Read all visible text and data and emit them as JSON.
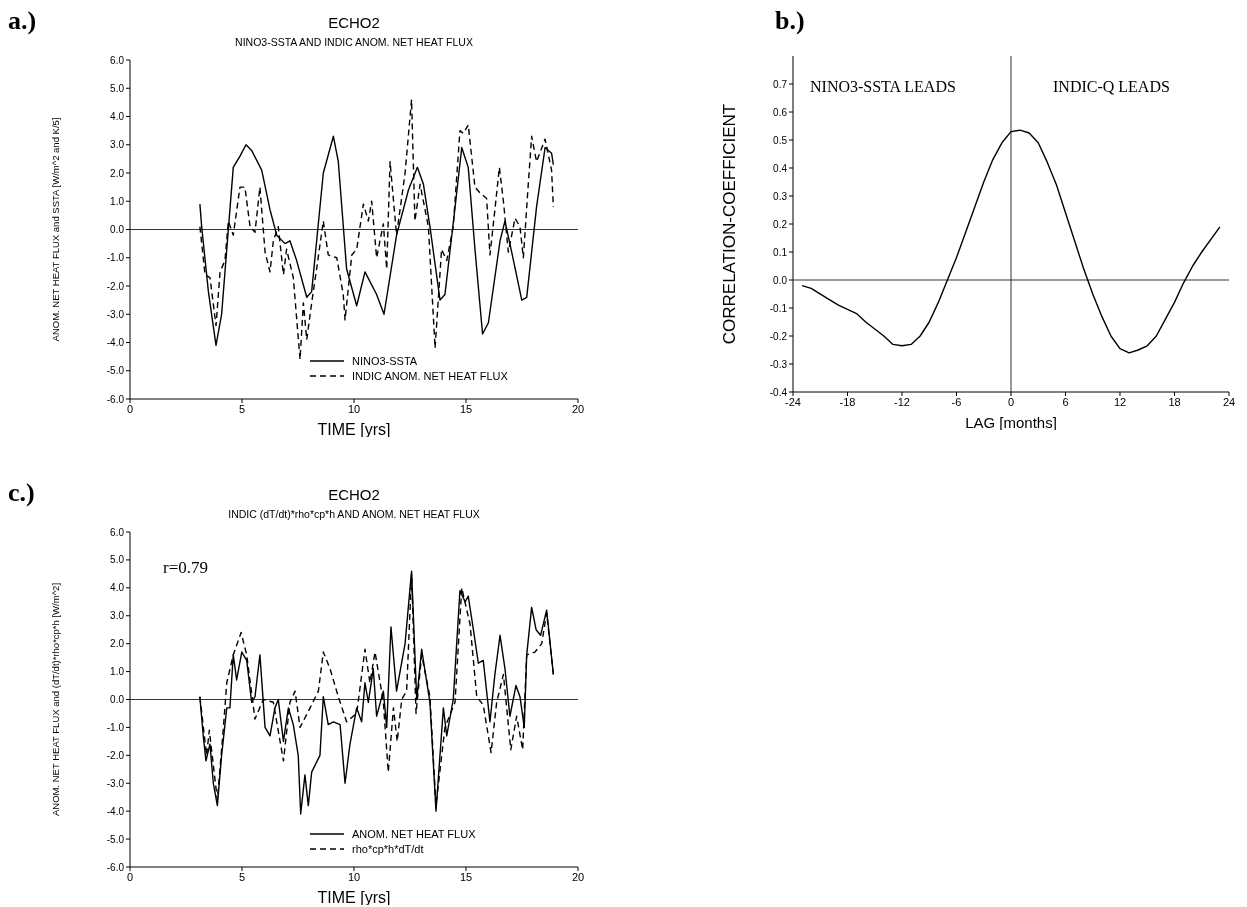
{
  "chart_data": [
    {
      "type": "line",
      "title": "ECHO2",
      "subtitle": "NINO3-SSTA AND INDIC ANOM. NET HEAT FLUX",
      "xlabel": "TIME [yrs]",
      "ylabel": "ANOM. NET HEAT FLUX and SSTA [W/m^2 and K/5]",
      "annotations": [
        "a.)"
      ],
      "xlim": [
        0,
        20
      ],
      "xticks": [
        0,
        5,
        10,
        15,
        20
      ],
      "ylim": [
        -6,
        6
      ],
      "yticks": [
        {
          "value": -6,
          "label": "-6.0"
        },
        {
          "value": -5,
          "label": "-5.0"
        },
        {
          "value": -4,
          "label": "-4.0"
        },
        {
          "value": -3,
          "label": "-3.0"
        },
        {
          "value": -2,
          "label": "-2.0"
        },
        {
          "value": -1,
          "label": "-1.0"
        },
        {
          "value": 0,
          "label": "0.0"
        },
        {
          "value": 1,
          "label": "1.0"
        },
        {
          "value": 2,
          "label": "2.0"
        },
        {
          "value": 3,
          "label": "3.0"
        },
        {
          "value": 4,
          "label": "4.0"
        },
        {
          "value": 5,
          "label": "5.0"
        },
        {
          "value": 6,
          "label": "6.0"
        }
      ],
      "grid": false,
      "legend": "bottom",
      "ref_lines": [
        {
          "axis": "y",
          "value": 0,
          "color": "#000000"
        }
      ],
      "series": [
        {
          "name": "NINO3-SSTA",
          "color": "#000000",
          "line_style": "solid",
          "x": [
            3.12,
            3.2,
            3.5,
            3.84,
            4.09,
            4.32,
            4.61,
            4.91,
            5.18,
            5.43,
            5.88,
            6.25,
            6.55,
            6.92,
            7.14,
            7.44,
            7.89,
            8.11,
            8.63,
            9.08,
            9.3,
            9.67,
            10.12,
            10.49,
            11.01,
            11.34,
            11.9,
            12.43,
            12.83,
            13.1,
            13.39,
            13.84,
            14.06,
            14.5,
            14.81,
            15.1,
            15.4,
            15.74,
            16,
            16.52,
            16.74,
            17.04,
            17.49,
            17.71,
            18.15,
            18.53,
            18.82,
            18.9
          ],
          "values": [
            0.9,
            0.1,
            -2.2,
            -4.1,
            -3,
            -0.7,
            2.2,
            2.6,
            3,
            2.8,
            2.1,
            0.7,
            -0.2,
            -0.5,
            -0.4,
            -1.1,
            -2.4,
            -2.2,
            2,
            3.3,
            2.4,
            -1.4,
            -2.7,
            -1.5,
            -2.3,
            -3,
            -0.2,
            1.4,
            2.2,
            1.6,
            0.1,
            -2.5,
            -2.3,
            0.7,
            2.9,
            2.2,
            -0.7,
            -3.7,
            -3.3,
            -0.4,
            0.3,
            -0.8,
            -2.5,
            -2.4,
            0.8,
            2.9,
            2.7,
            2.3
          ]
        },
        {
          "name": "INDIC ANOM. NET HEAT FLUX",
          "color": "#000000",
          "line_style": "dashed",
          "x": [
            3.12,
            3.35,
            3.57,
            3.84,
            4.02,
            4.24,
            4.39,
            4.61,
            4.91,
            5.13,
            5.36,
            5.58,
            5.8,
            6.03,
            6.25,
            6.4,
            6.62,
            6.85,
            6.99,
            7.29,
            7.59,
            7.74,
            7.89,
            8.11,
            8.33,
            8.63,
            8.85,
            9.23,
            9.52,
            9.6,
            9.9,
            10.12,
            10.42,
            10.64,
            10.79,
            11.01,
            11.31,
            11.46,
            11.61,
            11.9,
            12.28,
            12.57,
            12.72,
            12.95,
            13.32,
            13.62,
            13.91,
            14.14,
            14.43,
            14.73,
            14.88,
            15.1,
            15.4,
            15.62,
            15.92,
            16.07,
            16.29,
            16.49,
            16.67,
            16.89,
            17.19,
            17.41,
            17.56,
            17.78,
            17.93,
            18.15,
            18.53,
            18.82,
            18.9
          ],
          "values": [
            0.1,
            -1.6,
            -1.7,
            -3.4,
            -1.5,
            -1.1,
            0.3,
            -0.2,
            1.5,
            1.5,
            0.1,
            -0.1,
            1.5,
            -0.8,
            -1.5,
            -0.4,
            0.1,
            -1.6,
            -0.7,
            -1.7,
            -4.6,
            -2.6,
            -3.9,
            -2.6,
            -1.4,
            0.3,
            -0.9,
            -1,
            -2.3,
            -3.2,
            -0.9,
            -0.7,
            0.9,
            0.3,
            1,
            -1,
            0.2,
            -1.4,
            2.4,
            -0.2,
            2,
            4.6,
            0.3,
            1.6,
            0.1,
            -4.2,
            -0.7,
            -1.1,
            0.1,
            3.5,
            3.4,
            3.7,
            1.5,
            1.3,
            1.1,
            -0.9,
            0.7,
            2.2,
            1,
            -0.8,
            0.4,
            0.1,
            -1,
            1.6,
            3.3,
            2.4,
            3.2,
            2.1,
            0.8
          ]
        }
      ]
    },
    {
      "type": "line",
      "ylabel": "CORRELATION-COEFFICIENT",
      "xlabel": "LAG [months]",
      "annotations": [
        "b.)",
        "NINO3-SSTA LEADS",
        "INDIC-Q LEADS"
      ],
      "xlim": [
        -24,
        24
      ],
      "xticks": [
        -24,
        -18,
        -12,
        -6,
        0,
        6,
        12,
        18,
        24
      ],
      "ylim": [
        -0.4,
        0.8
      ],
      "yticks": [
        -0.4,
        -0.3,
        -0.2,
        -0.1,
        {
          "value": 0,
          "label": "0.0"
        },
        0.1,
        0.2,
        0.3,
        0.4,
        0.5,
        0.6,
        0.7
      ],
      "grid": false,
      "ref_lines": [
        {
          "axis": "y",
          "value": 0,
          "color": "#000000"
        },
        {
          "axis": "x",
          "value": 0,
          "color": "#000000"
        }
      ],
      "series": [
        {
          "color": "#000000",
          "line_style": "solid",
          "x": [
            -23,
            -22,
            -20,
            -19,
            -17,
            -16,
            -14,
            -13,
            -12,
            -11,
            -10,
            -9,
            -8,
            -7,
            -6,
            -5,
            -4,
            -3,
            -2,
            -1,
            0,
            1,
            2,
            3,
            4,
            5,
            6,
            7,
            8,
            9,
            10,
            11,
            12,
            13,
            14,
            15,
            16,
            17,
            18,
            19,
            20,
            21,
            23
          ],
          "values": [
            -0.02,
            -0.03,
            -0.07,
            -0.09,
            -0.12,
            -0.15,
            -0.2,
            -0.23,
            -0.235,
            -0.23,
            -0.2,
            -0.15,
            -0.08,
            0,
            0.08,
            0.17,
            0.26,
            0.35,
            0.43,
            0.49,
            0.53,
            0.535,
            0.525,
            0.49,
            0.42,
            0.34,
            0.24,
            0.14,
            0.04,
            -0.05,
            -0.13,
            -0.2,
            -0.245,
            -0.26,
            -0.25,
            -0.235,
            -0.2,
            -0.14,
            -0.08,
            -0.01,
            0.05,
            0.1,
            0.19
          ]
        }
      ]
    },
    {
      "type": "line",
      "title": "ECHO2",
      "subtitle": "INDIC (dT/dt)*rho*cp*h AND ANOM. NET HEAT FLUX",
      "xlabel": "TIME [yrs]",
      "ylabel": "ANOM. NET HEAT FLUX and (dT/dt)*rho*cp*h  [W/m^2]",
      "annotations": [
        "c.)",
        "r=0.79"
      ],
      "xlim": [
        0,
        20
      ],
      "xticks": [
        0,
        5,
        10,
        15,
        20
      ],
      "ylim": [
        -6,
        6
      ],
      "yticks": [
        {
          "value": -6,
          "label": "-6.0"
        },
        {
          "value": -5,
          "label": "-5.0"
        },
        {
          "value": -4,
          "label": "-4.0"
        },
        {
          "value": -3,
          "label": "-3.0"
        },
        {
          "value": -2,
          "label": "-2.0"
        },
        {
          "value": -1,
          "label": "-1.0"
        },
        {
          "value": 0,
          "label": "0.0"
        },
        {
          "value": 1,
          "label": "1.0"
        },
        {
          "value": 2,
          "label": "2.0"
        },
        {
          "value": 3,
          "label": "3.0"
        },
        {
          "value": 4,
          "label": "4.0"
        },
        {
          "value": 5,
          "label": "5.0"
        },
        {
          "value": 6,
          "label": "6.0"
        }
      ],
      "grid": false,
      "legend": "bottom",
      "ref_lines": [
        {
          "axis": "y",
          "value": 0,
          "color": "#000000"
        }
      ],
      "series": [
        {
          "name": "ANOM. NET HEAT FLUX",
          "color": "#000000",
          "line_style": "solid",
          "x": [
            3.12,
            3.27,
            3.39,
            3.57,
            3.72,
            3.9,
            4.09,
            4.32,
            4.46,
            4.61,
            4.76,
            4.99,
            5.21,
            5.43,
            5.58,
            5.8,
            6.03,
            6.25,
            6.47,
            6.62,
            6.85,
            7.07,
            7.29,
            7.51,
            7.62,
            7.81,
            7.96,
            8.11,
            8.48,
            8.63,
            8.85,
            9.08,
            9.38,
            9.6,
            9.82,
            10.12,
            10.34,
            10.49,
            10.64,
            10.86,
            11.01,
            11.31,
            11.46,
            11.65,
            11.9,
            12.28,
            12.57,
            12.8,
            13.02,
            13.39,
            13.66,
            13.99,
            14.14,
            14.43,
            14.73,
            14.96,
            15.1,
            15.33,
            15.55,
            15.77,
            16.07,
            16.29,
            16.52,
            16.74,
            16.96,
            17.23,
            17.41,
            17.6,
            17.71,
            17.93,
            18.13,
            18.33,
            18.6,
            18.9
          ],
          "values": [
            0.1,
            -1.3,
            -2.2,
            -1.6,
            -3,
            -3.8,
            -2,
            -0.3,
            -0.3,
            1.6,
            0.7,
            1.7,
            1.4,
            -0.1,
            0.1,
            1.6,
            -1,
            -1.3,
            -0.3,
            0,
            -1.5,
            -0.3,
            -0.9,
            -2,
            -4.1,
            -2.7,
            -3.8,
            -2.6,
            -2,
            0.1,
            -0.9,
            -0.8,
            -0.9,
            -3,
            -1.6,
            -0.3,
            -0.8,
            0.6,
            -0.1,
            1.1,
            -0.6,
            0.3,
            -1,
            2.6,
            0.3,
            2,
            4.6,
            0,
            1.8,
            -0.1,
            -4,
            -0.3,
            -1.3,
            0,
            3.9,
            3.5,
            3.7,
            2.5,
            1.3,
            1.4,
            -0.8,
            0.9,
            2.3,
            1.1,
            -0.6,
            0.5,
            0.1,
            -1,
            1.6,
            3.3,
            2.5,
            2.3,
            3.2,
            0.9
          ]
        },
        {
          "name": "rho*cp*h*dT/dt",
          "color": "#000000",
          "line_style": "dashed",
          "x": [
            3.12,
            3.42,
            3.54,
            3.9,
            4.17,
            4.32,
            4.61,
            4.96,
            5.21,
            5.58,
            5.95,
            6.4,
            6.85,
            7.14,
            7.37,
            7.59,
            8.04,
            8.41,
            8.63,
            8.93,
            9.3,
            9.67,
            10.12,
            10.49,
            10.71,
            10.94,
            11.31,
            11.53,
            11.76,
            11.93,
            12.13,
            12.35,
            12.57,
            12.77,
            13.02,
            13.39,
            13.66,
            14.06,
            14.51,
            14.81,
            15.18,
            15.48,
            15.77,
            16.12,
            16.37,
            16.67,
            17,
            17.26,
            17.53,
            17.71,
            18.08,
            18.38,
            18.6,
            18.9
          ],
          "values": [
            0.1,
            -2,
            -1.1,
            -3.6,
            -1,
            0.6,
            1.6,
            2.4,
            1.6,
            -0.7,
            0,
            -0.1,
            -2.2,
            -0.1,
            0.3,
            -1,
            -0.3,
            0.3,
            1.7,
            1.1,
            0.1,
            -0.8,
            -0.5,
            1.8,
            0.6,
            1.7,
            -0.1,
            -2.6,
            -0.3,
            -1.5,
            0,
            0.3,
            4.5,
            -0.5,
            1.6,
            0.1,
            -3.8,
            -1,
            -0.1,
            4,
            2.7,
            0.1,
            -0.2,
            -1.9,
            -0.1,
            0.9,
            -1.8,
            -0.6,
            -1.8,
            1.6,
            1.7,
            2,
            3.1,
            0.9
          ]
        }
      ]
    }
  ]
}
